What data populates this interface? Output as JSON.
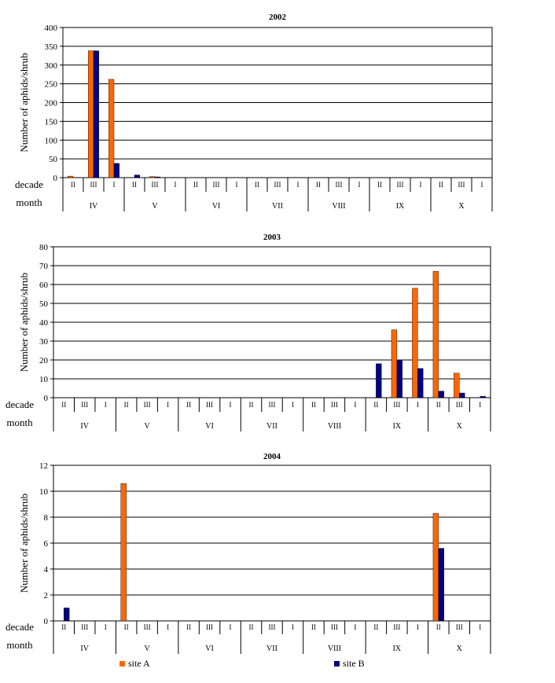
{
  "colors": {
    "site_a": "#ff6600",
    "site_b": "#000080",
    "grid": "#000000",
    "background": "#ffffff"
  },
  "chart_data": [
    {
      "type": "bar",
      "title": "2002",
      "ylabel": "Number of aphids/shrub",
      "ylim": [
        0,
        400
      ],
      "yticks": [
        0,
        50,
        100,
        150,
        200,
        250,
        300,
        350,
        400
      ],
      "row_labels": [
        "decade",
        "month"
      ],
      "decades": [
        "II",
        "III",
        "I",
        "II",
        "III",
        "I",
        "II",
        "III",
        "I",
        "II",
        "III",
        "I",
        "II",
        "III",
        "I",
        "II",
        "III",
        "I",
        "II",
        "III",
        "I"
      ],
      "months": [
        "IV",
        "V",
        "VI",
        "VII",
        "VIII",
        "IX",
        "X"
      ],
      "series": [
        {
          "name": "site A",
          "values": [
            4,
            338,
            262,
            0,
            3,
            0,
            0,
            0,
            0,
            0,
            0,
            0,
            0,
            0,
            0,
            0,
            0,
            0,
            0,
            0,
            0
          ]
        },
        {
          "name": "site B",
          "values": [
            0,
            338,
            38,
            7,
            2,
            0,
            0,
            0,
            0,
            0,
            0,
            0,
            0,
            0,
            0,
            0,
            0,
            0,
            0,
            0,
            0
          ]
        }
      ]
    },
    {
      "type": "bar",
      "title": "2003",
      "ylabel": "Number of aphids/shrub",
      "ylim": [
        0,
        80
      ],
      "yticks": [
        0,
        10,
        20,
        30,
        40,
        50,
        60,
        70,
        80
      ],
      "row_labels": [
        "decade",
        "month"
      ],
      "decades": [
        "II",
        "III",
        "I",
        "II",
        "III",
        "I",
        "II",
        "III",
        "I",
        "II",
        "III",
        "I",
        "II",
        "III",
        "I",
        "II",
        "III",
        "I",
        "II",
        "III",
        "I"
      ],
      "months": [
        "IV",
        "V",
        "VI",
        "VII",
        "VIII",
        "IX",
        "X"
      ],
      "series": [
        {
          "name": "site A",
          "values": [
            0,
            0,
            0,
            0,
            0,
            0,
            0,
            0,
            0,
            0,
            0,
            0,
            0,
            0,
            0,
            0,
            36,
            58,
            67,
            13,
            0
          ]
        },
        {
          "name": "site B",
          "values": [
            0,
            0,
            0,
            0,
            0,
            0,
            0,
            0,
            0,
            0,
            0,
            0,
            0,
            0,
            0,
            18,
            20,
            15.5,
            3.5,
            2.5,
            0.7
          ]
        }
      ]
    },
    {
      "type": "bar",
      "title": "2004",
      "ylabel": "Number of aphids/shrub",
      "ylim": [
        0,
        12
      ],
      "yticks": [
        0,
        2,
        4,
        6,
        8,
        10,
        12
      ],
      "row_labels": [
        "decade",
        "month"
      ],
      "decades": [
        "II",
        "III",
        "I",
        "II",
        "III",
        "I",
        "II",
        "III",
        "I",
        "II",
        "III",
        "I",
        "II",
        "III",
        "I",
        "II",
        "III",
        "I",
        "II",
        "III",
        "I"
      ],
      "months": [
        "IV",
        "V",
        "VI",
        "VII",
        "VIII",
        "IX",
        "X"
      ],
      "series": [
        {
          "name": "site A",
          "values": [
            0,
            0,
            0,
            10.6,
            0,
            0,
            0,
            0,
            0,
            0,
            0,
            0,
            0,
            0,
            0,
            0,
            0,
            0,
            8.3,
            0,
            0
          ]
        },
        {
          "name": "site B",
          "values": [
            1,
            0,
            0,
            0,
            0,
            0,
            0,
            0,
            0,
            0,
            0,
            0,
            0,
            0,
            0,
            0,
            0,
            0,
            5.6,
            0,
            0
          ]
        }
      ]
    }
  ],
  "legend": [
    {
      "label": "site A",
      "color": "#ff6600"
    },
    {
      "label": "site B",
      "color": "#000080"
    }
  ]
}
